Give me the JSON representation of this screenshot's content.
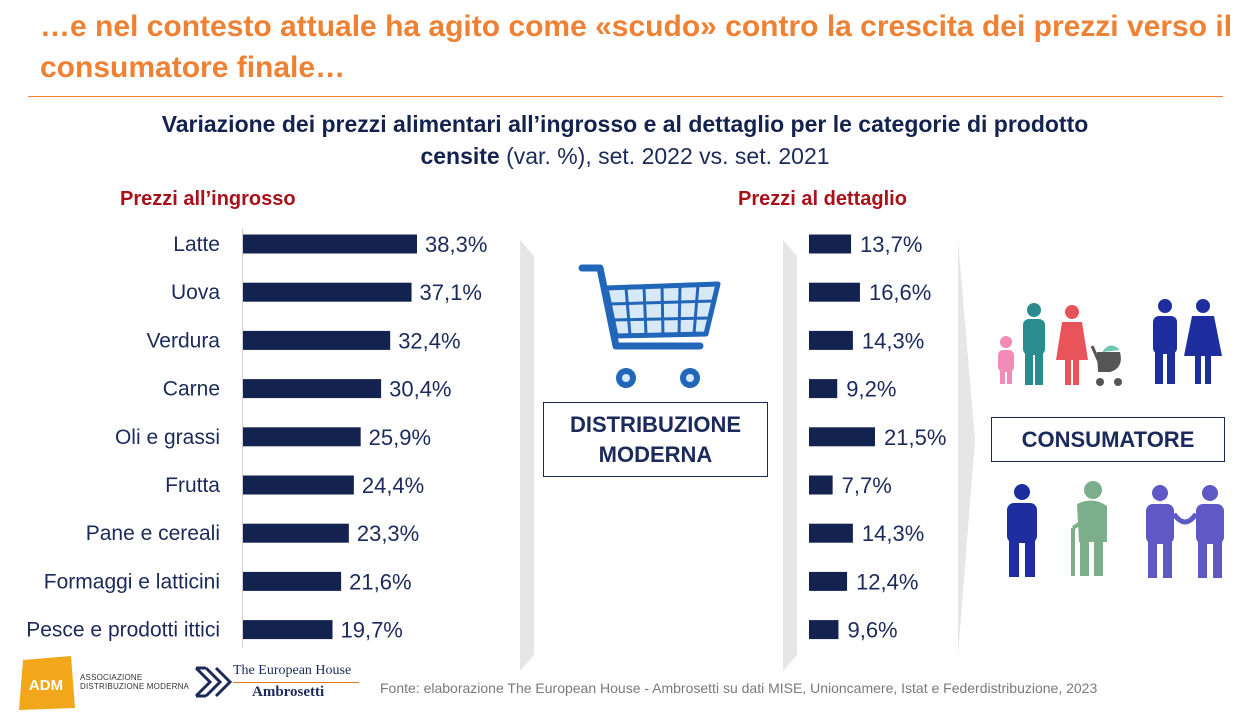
{
  "headline": "…e nel contesto attuale ha agito come «scudo» contro la crescita dei prezzi verso il consumatore finale…",
  "subtitle": {
    "bold_part": "Variazione dei prezzi alimentari all’ingrosso e al dettaglio per le categorie di prodotto censite",
    "normal_part": " (var. %), set. 2022 vs. set. 2021"
  },
  "labels": {
    "distribuzione_line1": "DISTRIBUZIONE",
    "distribuzione_line2": "MODERNA",
    "consumatore": "CONSUMATORE"
  },
  "colors": {
    "accent": "#EE8133",
    "bar": "#14224F",
    "column_title": "#A8101A",
    "arrow": "#E6E6E6"
  },
  "chart_data": [
    {
      "type": "bar",
      "orientation": "horizontal",
      "title": "Prezzi all’ingrosso",
      "categories": [
        "Latte",
        "Uova",
        "Verdura",
        "Carne",
        "Oli e grassi",
        "Frutta",
        "Pane e cereali",
        "Formaggi e latticini",
        "Pesce e prodotti ittici"
      ],
      "values": [
        38.3,
        37.1,
        32.4,
        30.4,
        25.9,
        24.4,
        23.3,
        21.6,
        19.7
      ],
      "value_labels": [
        "38,3%",
        "37,1%",
        "32,4%",
        "30,4%",
        "25,9%",
        "24,4%",
        "23,3%",
        "21,6%",
        "19,7%"
      ],
      "unit": "%"
    },
    {
      "type": "bar",
      "orientation": "horizontal",
      "title": "Prezzi al dettaglio",
      "categories": [
        "Latte",
        "Uova",
        "Verdura",
        "Carne",
        "Oli e grassi",
        "Frutta",
        "Pane e cereali",
        "Formaggi e latticini",
        "Pesce e prodotti ittici"
      ],
      "values": [
        13.7,
        16.6,
        14.3,
        9.2,
        21.5,
        7.7,
        14.3,
        12.4,
        9.6
      ],
      "value_labels": [
        "13,7%",
        "16,6%",
        "14,3%",
        "9,2%",
        "21,5%",
        "7,7%",
        "14,3%",
        "12,4%",
        "9,6%"
      ],
      "unit": "%"
    }
  ],
  "icons": {
    "cart": "shopping-cart-icon",
    "family": "family-icon",
    "couple": "couple-icon",
    "man": "man-icon",
    "elderly": "elderly-person-icon",
    "elderly_couple": "elderly-couple-icon"
  },
  "footer": {
    "adm_mark": "ADM",
    "adm_line1": "ASSOCIAZIONE",
    "adm_line2": "DISTRIBUZIONE MODERNA",
    "teh_line1": "The European House",
    "teh_line2": "Ambrosetti",
    "source": "Fonte: elaborazione The European House - Ambrosetti su dati MISE, Unioncamere, Istat e Federdistribuzione, 2023"
  }
}
